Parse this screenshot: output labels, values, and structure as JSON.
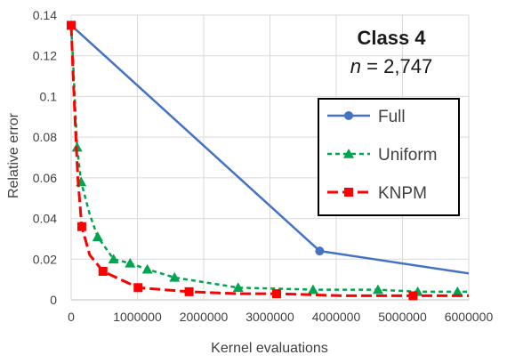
{
  "chart_data": {
    "type": "line",
    "xlabel": "Kernel evaluations",
    "ylabel": "Relative error",
    "xlim": [
      0,
      6000000
    ],
    "ylim": [
      0,
      0.14
    ],
    "x_ticks": [
      "0",
      "1000000",
      "2000000",
      "3000000",
      "4000000",
      "5000000",
      "6000000"
    ],
    "y_ticks": [
      "0",
      "0.02",
      "0.04",
      "0.06",
      "0.08",
      "0.1",
      "0.12",
      "0.14"
    ],
    "grid": true,
    "legend_position": "right",
    "annotation": {
      "title": "Class 4",
      "sub_var": "n",
      "sub_rest": " = 2,747"
    },
    "series": [
      {
        "name": "Full",
        "color": "#4472c4",
        "line_style": "solid",
        "marker": "circle",
        "points": [
          [
            0,
            0.135
          ],
          [
            3750000,
            0.024
          ],
          [
            6000000,
            0.013
          ]
        ],
        "marked_indices": [
          0,
          1
        ]
      },
      {
        "name": "Uniform",
        "color": "#00a550",
        "line_style": "dashed",
        "marker": "triangle",
        "points": [
          [
            0,
            0.134
          ],
          [
            25000,
            0.12
          ],
          [
            60000,
            0.095
          ],
          [
            90000,
            0.075
          ],
          [
            150000,
            0.058
          ],
          [
            280000,
            0.042
          ],
          [
            400000,
            0.031
          ],
          [
            640000,
            0.02
          ],
          [
            890000,
            0.018
          ],
          [
            1150000,
            0.015
          ],
          [
            1560000,
            0.011
          ],
          [
            2520000,
            0.006
          ],
          [
            3650000,
            0.005
          ],
          [
            4630000,
            0.005
          ],
          [
            5230000,
            0.004
          ],
          [
            5830000,
            0.004
          ],
          [
            6000000,
            0.004
          ]
        ],
        "marked_indices": [
          3,
          4,
          6,
          7,
          8,
          9,
          10,
          11,
          12,
          13,
          14,
          15
        ]
      },
      {
        "name": "KNPM",
        "color": "#ff0000",
        "line_style": "dashed",
        "marker": "square",
        "points": [
          [
            0,
            0.135
          ],
          [
            50000,
            0.095
          ],
          [
            100000,
            0.06
          ],
          [
            160000,
            0.036
          ],
          [
            280000,
            0.022
          ],
          [
            480000,
            0.014
          ],
          [
            1010000,
            0.006
          ],
          [
            1780000,
            0.004
          ],
          [
            2520000,
            0.003
          ],
          [
            3100000,
            0.003
          ],
          [
            4100000,
            0.002
          ],
          [
            5160000,
            0.002
          ],
          [
            6000000,
            0.002
          ]
        ],
        "marked_indices": [
          0,
          3,
          5,
          6,
          7,
          9,
          11
        ]
      }
    ]
  }
}
